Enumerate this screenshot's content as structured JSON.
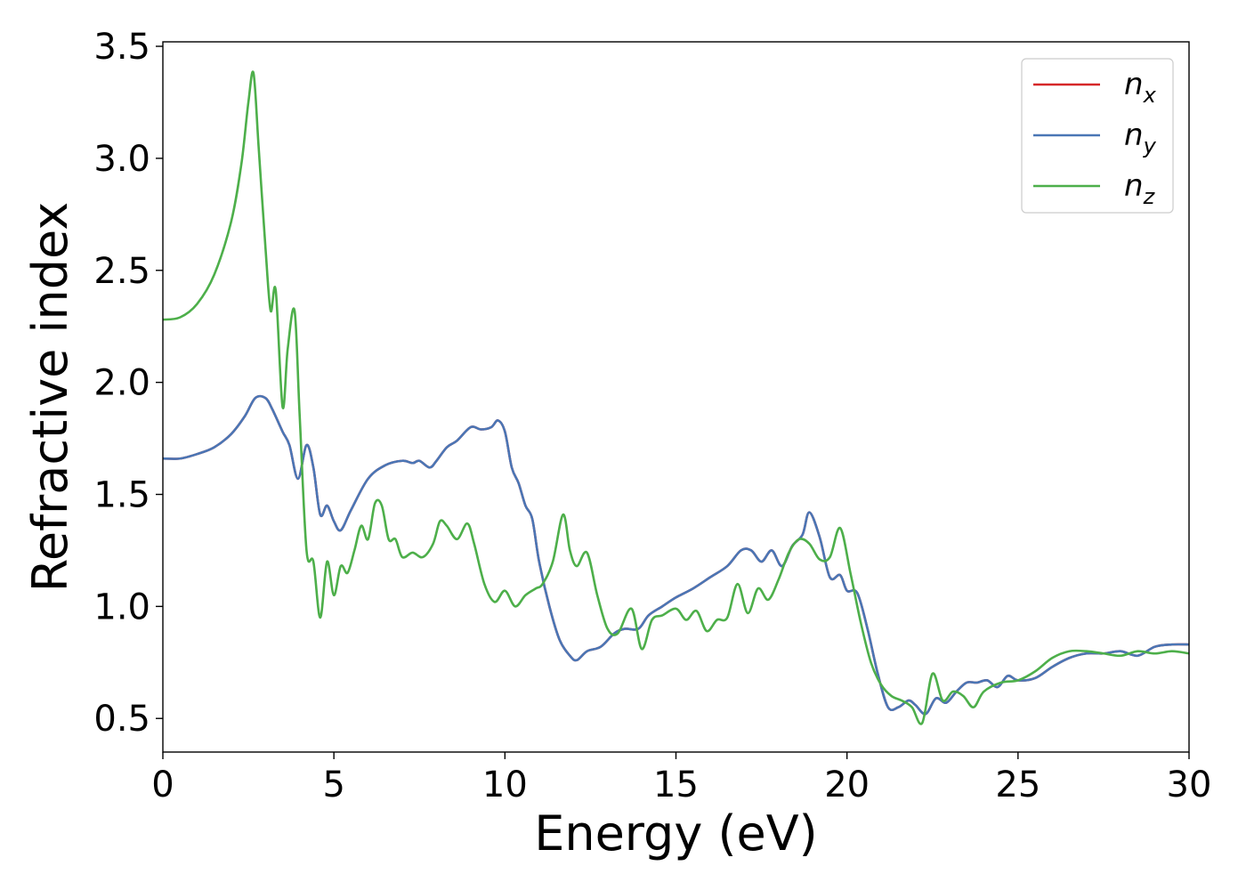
{
  "chart_data": {
    "type": "line",
    "xlabel": "Energy (eV)",
    "ylabel": "Refractive index",
    "xlim": [
      0,
      30
    ],
    "ylim": [
      0.35,
      3.52
    ],
    "xticks": [
      0,
      5,
      10,
      15,
      20,
      25,
      30
    ],
    "xtick_labels": [
      "0",
      "5",
      "10",
      "15",
      "20",
      "25",
      "30"
    ],
    "yticks": [
      0.5,
      1.0,
      1.5,
      2.0,
      2.5,
      3.0,
      3.5
    ],
    "ytick_labels": [
      "0.5",
      "1.0",
      "1.5",
      "2.0",
      "2.5",
      "3.0",
      "3.5"
    ],
    "grid": false,
    "legend_position": "top-right",
    "series": [
      {
        "name": "n_x",
        "label_base": "n",
        "label_sub": "x",
        "color": "#d62728",
        "x": [
          0,
          0.5,
          1,
          1.5,
          2,
          2.4,
          2.7,
          3,
          3.2,
          3.5,
          3.7,
          3.95,
          4.2,
          4.4,
          4.6,
          4.8,
          5.0,
          5.2,
          5.5,
          6.0,
          6.5,
          7.0,
          7.3,
          7.5,
          7.8,
          8.0,
          8.3,
          8.6,
          9.0,
          9.3,
          9.6,
          9.8,
          10.0,
          10.2,
          10.4,
          10.6,
          10.8,
          11.0,
          11.3,
          11.6,
          11.9,
          12.1,
          12.4,
          12.8,
          13.2,
          13.5,
          13.9,
          14.2,
          14.6,
          15.0,
          15.5,
          16.0,
          16.5,
          16.9,
          17.2,
          17.5,
          17.8,
          18.1,
          18.4,
          18.7,
          18.9,
          19.2,
          19.5,
          19.8,
          20.0,
          20.3,
          20.6,
          20.9,
          21.2,
          21.5,
          21.8,
          22.0,
          22.3,
          22.6,
          22.9,
          23.2,
          23.5,
          23.8,
          24.1,
          24.4,
          24.7,
          25.0,
          25.5,
          26.0,
          26.5,
          27.0,
          27.5,
          28.0,
          28.5,
          29.0,
          29.5,
          30.0
        ],
        "y": [
          1.66,
          1.66,
          1.68,
          1.71,
          1.77,
          1.85,
          1.93,
          1.93,
          1.88,
          1.78,
          1.72,
          1.57,
          1.72,
          1.62,
          1.41,
          1.45,
          1.38,
          1.34,
          1.43,
          1.57,
          1.63,
          1.65,
          1.64,
          1.65,
          1.62,
          1.65,
          1.71,
          1.74,
          1.8,
          1.79,
          1.8,
          1.83,
          1.78,
          1.62,
          1.55,
          1.45,
          1.39,
          1.2,
          1.0,
          0.85,
          0.78,
          0.76,
          0.8,
          0.82,
          0.88,
          0.9,
          0.9,
          0.96,
          1.0,
          1.04,
          1.08,
          1.13,
          1.18,
          1.25,
          1.25,
          1.2,
          1.25,
          1.18,
          1.27,
          1.32,
          1.42,
          1.31,
          1.13,
          1.14,
          1.07,
          1.06,
          0.9,
          0.7,
          0.55,
          0.55,
          0.58,
          0.56,
          0.52,
          0.59,
          0.57,
          0.62,
          0.66,
          0.66,
          0.67,
          0.64,
          0.69,
          0.67,
          0.68,
          0.73,
          0.77,
          0.79,
          0.79,
          0.8,
          0.78,
          0.82,
          0.83,
          0.83
        ]
      },
      {
        "name": "n_y",
        "label_base": "n",
        "label_sub": "y",
        "color": "#4a76b5",
        "x": [
          0,
          0.5,
          1,
          1.5,
          2,
          2.4,
          2.7,
          3,
          3.2,
          3.5,
          3.7,
          3.95,
          4.2,
          4.4,
          4.6,
          4.8,
          5.0,
          5.2,
          5.5,
          6.0,
          6.5,
          7.0,
          7.3,
          7.5,
          7.8,
          8.0,
          8.3,
          8.6,
          9.0,
          9.3,
          9.6,
          9.8,
          10.0,
          10.2,
          10.4,
          10.6,
          10.8,
          11.0,
          11.3,
          11.6,
          11.9,
          12.1,
          12.4,
          12.8,
          13.2,
          13.5,
          13.9,
          14.2,
          14.6,
          15.0,
          15.5,
          16.0,
          16.5,
          16.9,
          17.2,
          17.5,
          17.8,
          18.1,
          18.4,
          18.7,
          18.9,
          19.2,
          19.5,
          19.8,
          20.0,
          20.3,
          20.6,
          20.9,
          21.2,
          21.5,
          21.8,
          22.0,
          22.3,
          22.6,
          22.9,
          23.2,
          23.5,
          23.8,
          24.1,
          24.4,
          24.7,
          25.0,
          25.5,
          26.0,
          26.5,
          27.0,
          27.5,
          28.0,
          28.5,
          29.0,
          29.5,
          30.0
        ],
        "y": [
          1.66,
          1.66,
          1.68,
          1.71,
          1.77,
          1.85,
          1.93,
          1.93,
          1.88,
          1.78,
          1.72,
          1.57,
          1.72,
          1.62,
          1.41,
          1.45,
          1.38,
          1.34,
          1.43,
          1.57,
          1.63,
          1.65,
          1.64,
          1.65,
          1.62,
          1.65,
          1.71,
          1.74,
          1.8,
          1.79,
          1.8,
          1.83,
          1.78,
          1.62,
          1.55,
          1.45,
          1.39,
          1.2,
          1.0,
          0.85,
          0.78,
          0.76,
          0.8,
          0.82,
          0.88,
          0.9,
          0.9,
          0.96,
          1.0,
          1.04,
          1.08,
          1.13,
          1.18,
          1.25,
          1.25,
          1.2,
          1.25,
          1.18,
          1.27,
          1.32,
          1.42,
          1.31,
          1.13,
          1.14,
          1.07,
          1.06,
          0.9,
          0.7,
          0.55,
          0.55,
          0.58,
          0.56,
          0.52,
          0.59,
          0.57,
          0.62,
          0.66,
          0.66,
          0.67,
          0.64,
          0.69,
          0.67,
          0.68,
          0.73,
          0.77,
          0.79,
          0.79,
          0.8,
          0.78,
          0.82,
          0.83,
          0.83
        ]
      },
      {
        "name": "n_z",
        "label_base": "n",
        "label_sub": "z",
        "color": "#4daf4a",
        "x": [
          0,
          0.5,
          1,
          1.5,
          2,
          2.3,
          2.5,
          2.65,
          2.8,
          3.0,
          3.15,
          3.3,
          3.5,
          3.65,
          3.85,
          4.0,
          4.2,
          4.4,
          4.6,
          4.8,
          5.0,
          5.2,
          5.4,
          5.6,
          5.8,
          6.0,
          6.2,
          6.4,
          6.6,
          6.8,
          7.0,
          7.3,
          7.6,
          7.9,
          8.1,
          8.3,
          8.6,
          8.9,
          9.1,
          9.4,
          9.7,
          10.0,
          10.3,
          10.6,
          10.9,
          11.1,
          11.4,
          11.7,
          11.9,
          12.1,
          12.4,
          12.7,
          13.0,
          13.3,
          13.7,
          14.0,
          14.3,
          14.6,
          15.0,
          15.3,
          15.6,
          15.9,
          16.2,
          16.5,
          16.8,
          17.1,
          17.4,
          17.7,
          18.0,
          18.3,
          18.6,
          18.9,
          19.2,
          19.5,
          19.8,
          20.1,
          20.4,
          20.7,
          21.0,
          21.3,
          21.6,
          21.9,
          22.2,
          22.5,
          22.8,
          23.1,
          23.4,
          23.7,
          24.0,
          24.5,
          25.0,
          25.5,
          26.0,
          26.5,
          27.0,
          27.5,
          28.0,
          28.5,
          29.0,
          29.5,
          30.0
        ],
        "y": [
          2.28,
          2.29,
          2.35,
          2.48,
          2.72,
          2.98,
          3.25,
          3.38,
          3.05,
          2.6,
          2.32,
          2.41,
          1.89,
          2.15,
          2.32,
          1.85,
          1.25,
          1.2,
          0.95,
          1.2,
          1.05,
          1.18,
          1.15,
          1.25,
          1.36,
          1.3,
          1.46,
          1.45,
          1.3,
          1.3,
          1.22,
          1.24,
          1.22,
          1.28,
          1.38,
          1.36,
          1.3,
          1.37,
          1.28,
          1.1,
          1.02,
          1.07,
          1.0,
          1.05,
          1.08,
          1.1,
          1.2,
          1.41,
          1.25,
          1.18,
          1.24,
          1.05,
          0.9,
          0.88,
          0.99,
          0.81,
          0.94,
          0.96,
          0.99,
          0.94,
          0.98,
          0.89,
          0.94,
          0.95,
          1.1,
          0.97,
          1.08,
          1.03,
          1.12,
          1.24,
          1.3,
          1.28,
          1.21,
          1.22,
          1.35,
          1.15,
          0.93,
          0.75,
          0.65,
          0.6,
          0.58,
          0.55,
          0.48,
          0.7,
          0.58,
          0.62,
          0.6,
          0.55,
          0.62,
          0.66,
          0.67,
          0.71,
          0.77,
          0.8,
          0.8,
          0.79,
          0.78,
          0.8,
          0.79,
          0.8,
          0.79
        ]
      }
    ]
  }
}
